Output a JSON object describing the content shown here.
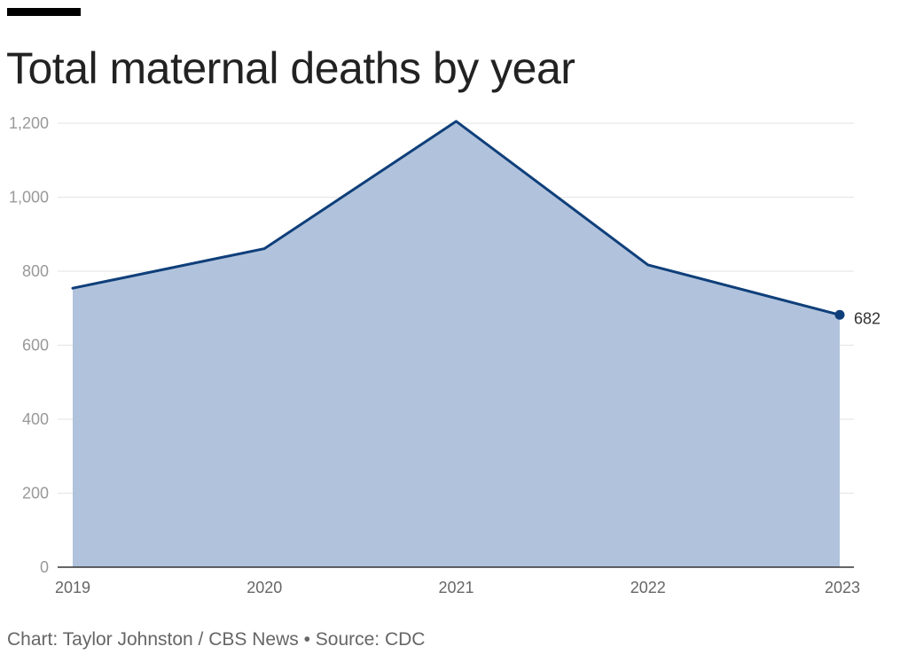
{
  "header": {
    "title": "Total maternal deaths by year"
  },
  "footer": {
    "credit": "Chart: Taylor Johnston / CBS News • Source: CDC"
  },
  "colors": {
    "line": "#0f3f7a",
    "area": "#b1c3dc",
    "grid": "#e3e3e3",
    "axis": "#333333"
  },
  "chart_data": {
    "type": "area",
    "title": "Total maternal deaths by year",
    "xlabel": "",
    "ylabel": "",
    "x": [
      "2019",
      "2020",
      "2021",
      "2022",
      "2023"
    ],
    "values": [
      754,
      861,
      1205,
      817,
      682
    ],
    "ylim": [
      0,
      1200
    ],
    "yticks": [
      0,
      200,
      400,
      600,
      800,
      1000,
      1200
    ],
    "ytick_labels": [
      "0",
      "200",
      "400",
      "600",
      "800",
      "1,000",
      "1,200"
    ],
    "grid": true,
    "annotations": [
      {
        "x": "2023",
        "value": 682,
        "label": "682"
      }
    ]
  }
}
